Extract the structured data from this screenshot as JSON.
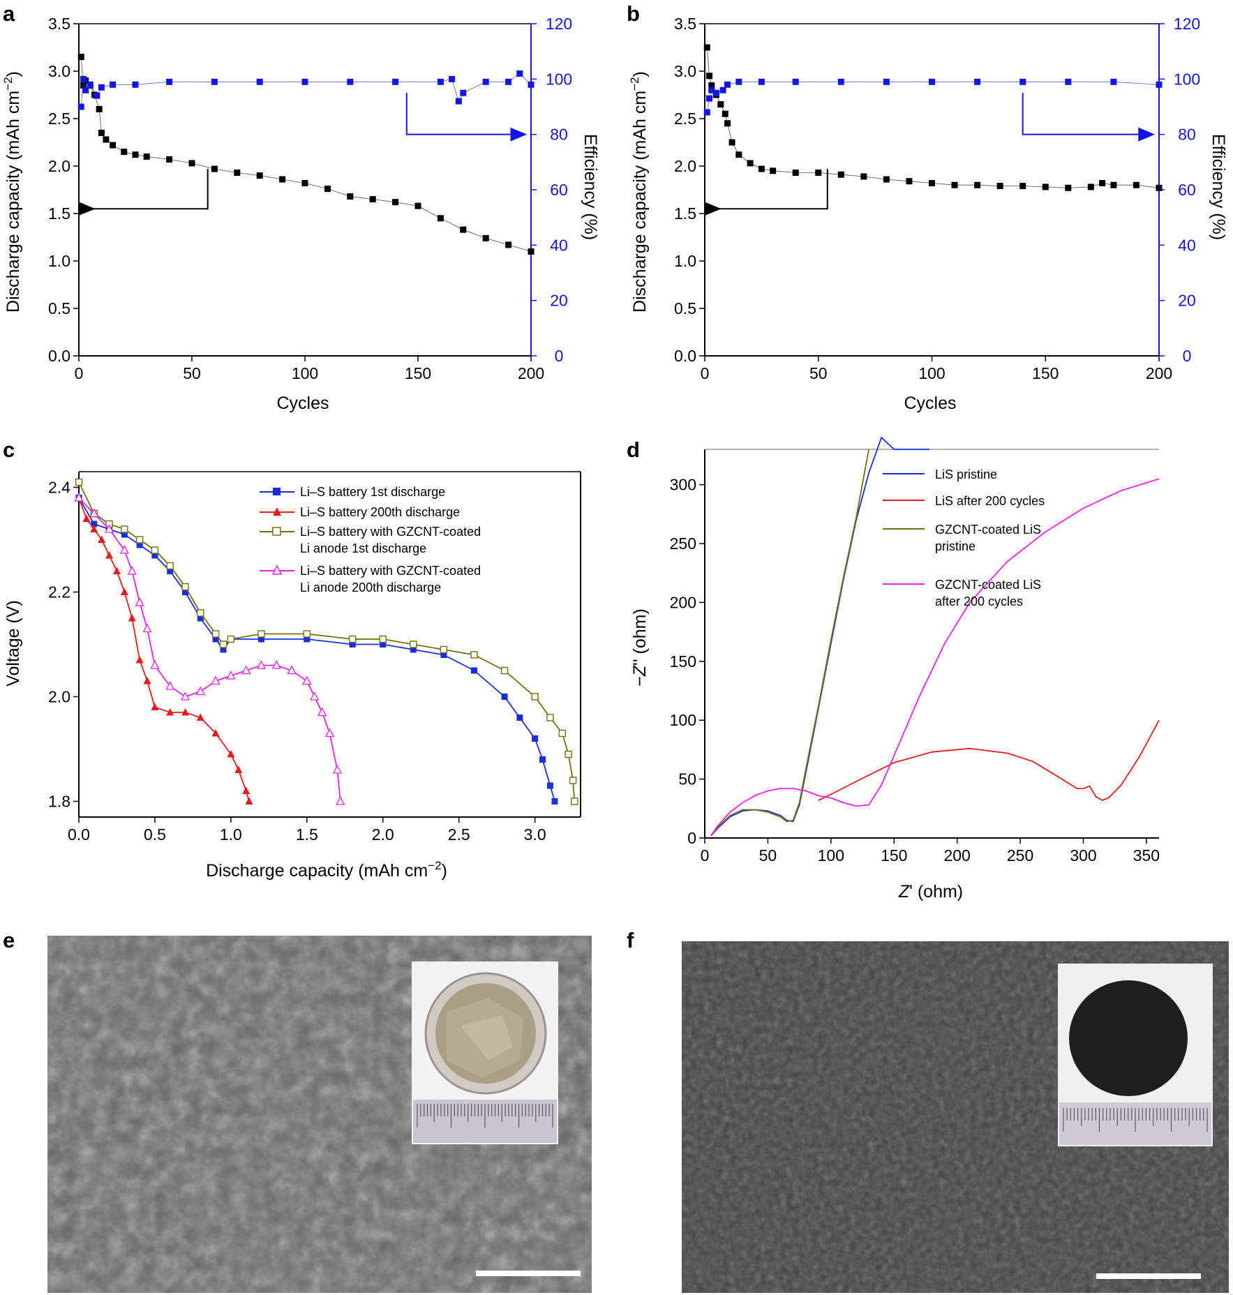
{
  "panels": {
    "a": "a",
    "b": "b",
    "c": "c",
    "d": "d",
    "e": "e",
    "f": "f"
  },
  "colors": {
    "black": "#000000",
    "blue": "#1414e6",
    "red": "#e81c1c",
    "olive": "#707010",
    "magenta": "#ee22ee",
    "deep_blue": "#1a2ee0"
  },
  "chart_data": [
    {
      "id": "a",
      "type": "scatter",
      "title": "",
      "xlabel": "Cycles",
      "ylabel": "Discharge capacity (mAh cm−2)",
      "y2label": "Efficiency (%)",
      "xlim": [
        0,
        200
      ],
      "ylim": [
        0,
        3.5
      ],
      "y2lim": [
        0,
        120
      ],
      "xticks": [
        "0",
        "50",
        "100",
        "150",
        "200"
      ],
      "yticks": [
        "0.0",
        "0.5",
        "1.0",
        "1.5",
        "2.0",
        "2.5",
        "3.0",
        "3.5"
      ],
      "y2ticks": [
        "0",
        "20",
        "40",
        "60",
        "80",
        "100",
        "120"
      ],
      "series": [
        {
          "name": "Discharge capacity",
          "axis": "left",
          "color": "#000000",
          "marker": "square",
          "x": [
            1,
            2,
            3,
            5,
            7,
            9,
            10,
            12,
            15,
            20,
            25,
            30,
            40,
            50,
            60,
            70,
            80,
            90,
            100,
            110,
            120,
            130,
            140,
            150,
            160,
            170,
            180,
            190,
            200
          ],
          "values": [
            3.15,
            2.85,
            2.9,
            2.85,
            2.75,
            2.6,
            2.35,
            2.28,
            2.22,
            2.15,
            2.12,
            2.1,
            2.07,
            2.03,
            1.97,
            1.93,
            1.9,
            1.86,
            1.82,
            1.76,
            1.68,
            1.65,
            1.62,
            1.58,
            1.45,
            1.33,
            1.24,
            1.17,
            1.1
          ]
        },
        {
          "name": "Efficiency",
          "axis": "right",
          "color": "#1414e6",
          "marker": "square",
          "x": [
            1,
            2,
            3,
            5,
            8,
            10,
            15,
            25,
            40,
            60,
            80,
            100,
            120,
            140,
            160,
            165,
            168,
            170,
            180,
            190,
            195,
            200
          ],
          "values": [
            90,
            100,
            96,
            98,
            94,
            97,
            98,
            98,
            99,
            99,
            99,
            99,
            99,
            99,
            99,
            100,
            92,
            95,
            99,
            99,
            102,
            98
          ]
        }
      ],
      "arrows": [
        {
          "series": "Discharge capacity",
          "direction": "left"
        },
        {
          "series": "Efficiency",
          "direction": "right"
        }
      ]
    },
    {
      "id": "b",
      "type": "scatter",
      "title": "",
      "xlabel": "Cycles",
      "ylabel": "Discharge capacity (mAh cm−2)",
      "y2label": "Efficiency (%)",
      "xlim": [
        0,
        200
      ],
      "ylim": [
        0,
        3.5
      ],
      "y2lim": [
        0,
        120
      ],
      "xticks": [
        "0",
        "50",
        "100",
        "150",
        "200"
      ],
      "yticks": [
        "0.0",
        "0.5",
        "1.0",
        "1.5",
        "2.0",
        "2.5",
        "3.0",
        "3.5"
      ],
      "y2ticks": [
        "0",
        "20",
        "40",
        "60",
        "80",
        "100",
        "120"
      ],
      "series": [
        {
          "name": "Discharge capacity",
          "axis": "left",
          "color": "#000000",
          "marker": "square",
          "x": [
            1,
            2,
            3,
            5,
            7,
            9,
            10,
            12,
            15,
            20,
            25,
            30,
            40,
            50,
            60,
            70,
            80,
            90,
            100,
            110,
            120,
            130,
            140,
            150,
            160,
            170,
            175,
            180,
            190,
            200
          ],
          "values": [
            3.25,
            2.95,
            2.85,
            2.75,
            2.65,
            2.55,
            2.45,
            2.25,
            2.12,
            2.03,
            1.97,
            1.95,
            1.93,
            1.93,
            1.91,
            1.89,
            1.86,
            1.84,
            1.82,
            1.8,
            1.8,
            1.79,
            1.79,
            1.78,
            1.77,
            1.78,
            1.82,
            1.8,
            1.8,
            1.77
          ]
        },
        {
          "name": "Efficiency",
          "axis": "right",
          "color": "#1414e6",
          "marker": "square",
          "x": [
            1,
            2,
            3,
            5,
            8,
            10,
            15,
            25,
            40,
            60,
            80,
            100,
            120,
            140,
            160,
            180,
            200
          ],
          "values": [
            88,
            93,
            96,
            95,
            96,
            98,
            99,
            99,
            99,
            99,
            99,
            99,
            99,
            99,
            99,
            99,
            98
          ]
        }
      ],
      "arrows": [
        {
          "series": "Discharge capacity",
          "direction": "left"
        },
        {
          "series": "Efficiency",
          "direction": "right"
        }
      ]
    },
    {
      "id": "c",
      "type": "line",
      "title": "",
      "xlabel": "Discharge capacity (mAh cm−2)",
      "ylabel": "Voltage (V)",
      "xlim": [
        0,
        3.3
      ],
      "ylim": [
        1.77,
        2.43
      ],
      "xticks": [
        "0.0",
        "0.5",
        "1.0",
        "1.5",
        "2.0",
        "2.5",
        "3.0"
      ],
      "yticks": [
        "1.8",
        "2.0",
        "2.2",
        "2.4"
      ],
      "legend_position": "top-center",
      "series": [
        {
          "name": "Li–S battery 1st discharge",
          "color": "#1a2ee0",
          "marker": "filled-square",
          "x": [
            0,
            0.1,
            0.2,
            0.3,
            0.4,
            0.5,
            0.6,
            0.7,
            0.8,
            0.9,
            0.95,
            1.0,
            1.2,
            1.5,
            1.8,
            2.0,
            2.2,
            2.4,
            2.6,
            2.8,
            2.9,
            3.0,
            3.05,
            3.1,
            3.13
          ],
          "values": [
            2.38,
            2.33,
            2.32,
            2.31,
            2.29,
            2.27,
            2.24,
            2.2,
            2.15,
            2.11,
            2.09,
            2.11,
            2.11,
            2.11,
            2.1,
            2.1,
            2.09,
            2.08,
            2.05,
            2.0,
            1.96,
            1.92,
            1.88,
            1.83,
            1.8
          ]
        },
        {
          "name": "Li–S battery 200th discharge",
          "color": "#e81c1c",
          "marker": "filled-triangle",
          "x": [
            0,
            0.05,
            0.1,
            0.15,
            0.2,
            0.25,
            0.3,
            0.35,
            0.4,
            0.45,
            0.5,
            0.6,
            0.7,
            0.8,
            0.9,
            1.0,
            1.05,
            1.1,
            1.12
          ],
          "values": [
            2.38,
            2.34,
            2.32,
            2.3,
            2.27,
            2.24,
            2.2,
            2.15,
            2.07,
            2.03,
            1.98,
            1.97,
            1.97,
            1.96,
            1.93,
            1.89,
            1.86,
            1.82,
            1.8
          ]
        },
        {
          "name": "Li–S battery with GZCNT-coated Li anode 1st discharge",
          "color": "#707010",
          "marker": "open-square",
          "x": [
            0,
            0.1,
            0.2,
            0.3,
            0.4,
            0.5,
            0.6,
            0.7,
            0.8,
            0.9,
            0.95,
            1.0,
            1.2,
            1.5,
            1.8,
            2.0,
            2.2,
            2.4,
            2.6,
            2.8,
            3.0,
            3.1,
            3.18,
            3.22,
            3.25,
            3.26
          ],
          "values": [
            2.41,
            2.35,
            2.33,
            2.32,
            2.3,
            2.28,
            2.25,
            2.21,
            2.16,
            2.12,
            2.1,
            2.11,
            2.12,
            2.12,
            2.11,
            2.11,
            2.1,
            2.09,
            2.08,
            2.05,
            2.0,
            1.96,
            1.93,
            1.89,
            1.84,
            1.8
          ]
        },
        {
          "name": "Li–S battery with GZCNT-coated Li anode 200th discharge",
          "color": "#ee22ee",
          "marker": "open-triangle",
          "x": [
            0,
            0.1,
            0.2,
            0.3,
            0.35,
            0.4,
            0.45,
            0.5,
            0.6,
            0.7,
            0.8,
            0.9,
            1.0,
            1.1,
            1.2,
            1.3,
            1.4,
            1.5,
            1.55,
            1.6,
            1.65,
            1.7,
            1.72
          ],
          "values": [
            2.38,
            2.35,
            2.32,
            2.28,
            2.24,
            2.18,
            2.13,
            2.06,
            2.02,
            2.0,
            2.01,
            2.03,
            2.04,
            2.05,
            2.06,
            2.06,
            2.05,
            2.03,
            2.0,
            1.97,
            1.93,
            1.86,
            1.8
          ]
        }
      ]
    },
    {
      "id": "d",
      "type": "line",
      "title": "",
      "xlabel": "Z' (ohm)",
      "ylabel": "−Z'' (ohm)",
      "xlim": [
        0,
        360
      ],
      "ylim": [
        0,
        330
      ],
      "xticks": [
        "0",
        "50",
        "100",
        "150",
        "200",
        "250",
        "300",
        "350"
      ],
      "yticks": [
        "0",
        "50",
        "100",
        "150",
        "200",
        "250",
        "300"
      ],
      "legend_position": "top-center",
      "series": [
        {
          "name": "LiS pristine",
          "color": "#1a2ee0",
          "x": [
            5,
            10,
            20,
            30,
            40,
            50,
            60,
            65,
            70,
            75,
            80,
            90,
            100,
            110,
            120,
            130,
            140,
            150,
            160,
            170,
            175,
            178
          ],
          "values": [
            2,
            8,
            18,
            23,
            24,
            23,
            19,
            15,
            14,
            28,
            55,
            110,
            165,
            220,
            270,
            310,
            340,
            330,
            330,
            330,
            330,
            330
          ]
        },
        {
          "name": "LiS after 200 cycles",
          "color": "#e81c1c",
          "x": [
            90,
            100,
            120,
            150,
            180,
            210,
            240,
            260,
            280,
            295,
            300,
            305,
            310,
            315,
            320,
            330,
            345,
            360
          ],
          "values": [
            32,
            37,
            48,
            64,
            73,
            76,
            72,
            65,
            52,
            42,
            42,
            44,
            35,
            32,
            34,
            45,
            70,
            100
          ]
        },
        {
          "name": "GZCNT-coated LiS pristine",
          "color": "#707010",
          "x": [
            5,
            10,
            20,
            30,
            40,
            50,
            60,
            65,
            70,
            75,
            80,
            90,
            100,
            110,
            120,
            130
          ],
          "values": [
            2,
            9,
            19,
            24,
            24,
            22,
            18,
            14,
            15,
            30,
            58,
            112,
            168,
            222,
            272,
            330
          ]
        },
        {
          "name": "GZCNT-coated LiS after 200 cycles",
          "color": "#ee22ee",
          "x": [
            5,
            10,
            20,
            30,
            40,
            50,
            60,
            70,
            80,
            90,
            100,
            110,
            120,
            130,
            140,
            150,
            170,
            190,
            210,
            240,
            270,
            300,
            330,
            360
          ],
          "values": [
            2,
            10,
            22,
            30,
            36,
            40,
            42,
            42,
            40,
            36,
            34,
            30,
            27,
            28,
            45,
            70,
            120,
            165,
            200,
            235,
            260,
            280,
            295,
            305
          ]
        }
      ]
    }
  ],
  "legend_c": {
    "l1": "Li–S battery 1st discharge",
    "l2": "Li–S battery 200th discharge",
    "l3a": "Li–S battery with GZCNT-coated",
    "l3b": "Li anode 1st discharge",
    "l4a": "Li–S battery with GZCNT-coated",
    "l4b": "Li anode 200th discharge"
  },
  "legend_d": {
    "l1": "LiS pristine",
    "l2": "LiS after 200 cycles",
    "l3a": "GZCNT-coated LiS",
    "l3b": "pristine",
    "l4a": "GZCNT-coated LiS",
    "l4b": "after 200 cycles"
  },
  "axis_text": {
    "a_x": "Cycles",
    "a_y": "Discharge capacity (mAh cm",
    "a_y_sup": "−2",
    "a_y_end": ")",
    "a_y2": "Efficiency (%)",
    "b_x": "Cycles",
    "b_y": "Discharge capacity (mAh cm",
    "b_y_sup": "−2",
    "b_y_end": ")",
    "b_y2": "Efficiency (%)",
    "c_x": "Discharge capacity (mAh cm",
    "c_x_sup": "−2",
    "c_x_end": ")",
    "c_y": "Voltage (V)",
    "d_x_italic": "Z",
    "d_x": "' (ohm)",
    "d_y_pre": "−",
    "d_y_italic": "Z",
    "d_y": "'' (ohm)"
  }
}
